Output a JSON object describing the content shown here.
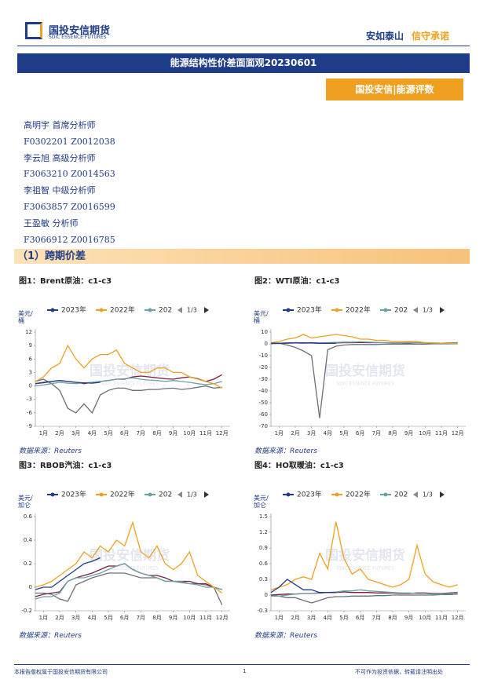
{
  "header": {
    "logo_cn": "国投安信期货",
    "logo_en": "SDIC ESSENCE FUTURES",
    "slogan_a": "安如泰山",
    "slogan_b": "信守承诺"
  },
  "title": "能源结构性价差面面观20230601",
  "badge": "国投安信|能源评数",
  "analysts": [
    "高明宇 首席分析师",
    "F0302201 Z0012038",
    "李云旭 高级分析师",
    "F3063210 Z0014563",
    "李祖智 中级分析师",
    "F3063857 Z0016599",
    "王盈敏 分析师",
    "F3066912 Z0016785"
  ],
  "section": "（1）跨期价差",
  "footer": {
    "left": "本报告版权属于国投安信期货有限公司",
    "page": "1",
    "right": "不可作为投资依据，转载请注明出处"
  },
  "chart_data": [
    {
      "type": "line",
      "title": "图1：Brent原油：c1-c3",
      "unit": "美元/桶",
      "source": "数据来源：Reuters",
      "pager": "1/3",
      "x": [
        1,
        1.5,
        2,
        2.5,
        3,
        3.5,
        4,
        4.5,
        5,
        5.5,
        6,
        6.5,
        7,
        7.5,
        8,
        8.5,
        9,
        9.5,
        10,
        10.5,
        11,
        11.5,
        12,
        12.5
      ],
      "xlim": [
        1,
        13
      ],
      "xticks": [
        {
          "value": 1.5,
          "label": "1月"
        },
        {
          "value": 2.5,
          "label": "2月"
        },
        {
          "value": 3.5,
          "label": "3月"
        },
        {
          "value": 4.5,
          "label": "4月"
        },
        {
          "value": 5.5,
          "label": "5月"
        },
        {
          "value": 6.5,
          "label": "6月"
        },
        {
          "value": 7.5,
          "label": "7月"
        },
        {
          "value": 8.5,
          "label": "8月"
        },
        {
          "value": 9.5,
          "label": "9月"
        },
        {
          "value": 10.5,
          "label": "10月"
        },
        {
          "value": 11.5,
          "label": "11月"
        },
        {
          "value": 12.5,
          "label": "12月"
        }
      ],
      "ylim": [
        -9,
        12
      ],
      "yticks": [
        -9,
        -6,
        -3,
        0,
        3,
        6,
        9,
        12
      ],
      "series": [
        {
          "name": "2023年",
          "color": "#1f3c88",
          "values": [
            0.5,
            0.8,
            1.0,
            1.2,
            1.0,
            0.8,
            0.7,
            0.6,
            0.8,
            null,
            null,
            null,
            null,
            null,
            null,
            null,
            null,
            null,
            null,
            null,
            null,
            null,
            null,
            null
          ]
        },
        {
          "name": "2022年",
          "color": "#f0a020",
          "values": [
            1,
            2,
            4,
            5,
            9,
            6,
            4,
            6,
            7,
            7,
            8,
            5,
            4,
            3,
            3,
            4,
            4,
            3,
            3,
            2,
            1.5,
            1,
            0.5,
            -0.5
          ]
        },
        {
          "name": "202",
          "color": "#6aa0a8",
          "values": [
            0,
            0.2,
            0.5,
            0.8,
            0.6,
            0.5,
            0.7,
            0.8,
            1.0,
            1.2,
            1.5,
            1.6,
            1.8,
            1.5,
            1.3,
            1.2,
            1.0,
            1.2,
            1.0,
            0.8,
            0.5,
            0.3,
            0.5,
            1.0
          ]
        },
        {
          "name": null,
          "color": "#7a1f3d",
          "values": [
            0.5,
            0.7,
            1.0,
            1.2,
            1.0,
            0.8,
            0.5,
            0.8,
            1.0,
            1.2,
            1.5,
            1.5,
            2.0,
            2.2,
            2.0,
            1.8,
            1.6,
            1.5,
            1.8,
            2.0,
            1.6,
            1.0,
            1.5,
            2.5
          ]
        },
        {
          "name": null,
          "color": "#6b6f78",
          "values": [
            1,
            1.5,
            0.5,
            -1,
            -5,
            -6,
            -4,
            -6,
            -2,
            -1,
            -0.5,
            -0.5,
            -1,
            -1,
            -0.8,
            -0.8,
            -0.6,
            -0.5,
            -0.8,
            -0.6,
            -0.3,
            0,
            -0.5,
            -0.3
          ]
        }
      ]
    },
    {
      "type": "line",
      "title": "图2：WTI原油：c1-c3",
      "unit": "美元/桶",
      "source": "数据来源：Reuters",
      "pager": "1/3",
      "x": [
        1,
        1.5,
        2,
        2.5,
        3,
        3.5,
        4,
        4.5,
        5,
        5.5,
        6,
        6.5,
        7,
        7.5,
        8,
        8.5,
        9,
        9.5,
        10,
        10.5,
        11,
        11.5,
        12,
        12.5
      ],
      "xlim": [
        1,
        13
      ],
      "xticks": [
        {
          "value": 1.5,
          "label": "1月"
        },
        {
          "value": 2.5,
          "label": "2月"
        },
        {
          "value": 3.5,
          "label": "3月"
        },
        {
          "value": 4.5,
          "label": "4月"
        },
        {
          "value": 5.5,
          "label": "5月"
        },
        {
          "value": 6.5,
          "label": "6月"
        },
        {
          "value": 7.5,
          "label": "7月"
        },
        {
          "value": 8.5,
          "label": "8月"
        },
        {
          "value": 9.5,
          "label": "9月"
        },
        {
          "value": 10.5,
          "label": "10月"
        },
        {
          "value": 11.5,
          "label": "11月"
        },
        {
          "value": 12.5,
          "label": "12月"
        }
      ],
      "ylim": [
        -70,
        10
      ],
      "yticks": [
        -70,
        -60,
        -50,
        -40,
        -30,
        -20,
        -10,
        0,
        10
      ],
      "series": [
        {
          "name": "2023年",
          "color": "#1f3c88",
          "values": [
            0.5,
            0.5,
            0.6,
            0.8,
            0.8,
            1,
            0.5,
            0.5,
            0.5,
            null,
            null,
            null,
            null,
            null,
            null,
            null,
            null,
            null,
            null,
            null,
            null,
            null,
            null,
            null
          ]
        },
        {
          "name": "2022年",
          "color": "#f0a020",
          "values": [
            1,
            2,
            4,
            5,
            8,
            5,
            6,
            7,
            8,
            7,
            6,
            4,
            4,
            3,
            3,
            2,
            2,
            2,
            2,
            1,
            1,
            0.5,
            0.5,
            0
          ]
        },
        {
          "name": "202",
          "color": "#6aa0a8",
          "values": [
            0,
            0.3,
            0.6,
            0.8,
            0.5,
            0.8,
            0.8,
            1,
            1.2,
            1.5,
            1.5,
            1.8,
            1.5,
            1.2,
            1,
            1,
            1,
            1.2,
            1,
            0.8,
            0.5,
            0.5,
            0.8,
            0.8
          ]
        },
        {
          "name": null,
          "color": "#7a1f3d",
          "values": [
            0.5,
            0.5,
            0.8,
            1,
            0.8,
            0.6,
            0.5,
            0.6,
            0.8,
            1,
            1,
            1.2,
            1,
            1,
            1,
            0.8,
            0.8,
            0.8,
            1,
            1,
            0.8,
            0.6,
            0.8,
            1
          ]
        },
        {
          "name": null,
          "color": "#6b6f78",
          "values": [
            0.5,
            0.5,
            -1,
            -3,
            -6,
            -10,
            -63,
            -5,
            -2,
            -1,
            -0.5,
            -0.5,
            -0.5,
            -0.5,
            -0.3,
            -0.3,
            -0.3,
            -0.2,
            -0.2,
            -0.2,
            0,
            0,
            0,
            0
          ]
        }
      ]
    },
    {
      "type": "line",
      "title": "图3：RBOB汽油：c1-c3",
      "unit": "美元/加仑",
      "source": "数据来源：Reuters",
      "pager": "1/3",
      "x": [
        1,
        1.5,
        2,
        2.5,
        3,
        3.5,
        4,
        4.5,
        5,
        5.5,
        6,
        6.5,
        7,
        7.5,
        8,
        8.5,
        9,
        9.5,
        10,
        10.5,
        11,
        11.5,
        12,
        12.5
      ],
      "xlim": [
        1,
        13
      ],
      "xticks": [
        {
          "value": 1.5,
          "label": "1月"
        },
        {
          "value": 2.5,
          "label": "2月"
        },
        {
          "value": 3.5,
          "label": "3月"
        },
        {
          "value": 4.5,
          "label": "4月"
        },
        {
          "value": 5.5,
          "label": "5月"
        },
        {
          "value": 6.5,
          "label": "6月"
        },
        {
          "value": 7.5,
          "label": "7月"
        },
        {
          "value": 8.5,
          "label": "8月"
        },
        {
          "value": 9.5,
          "label": "9月"
        },
        {
          "value": 10.5,
          "label": "10月"
        },
        {
          "value": 11.5,
          "label": "11月"
        },
        {
          "value": 12.5,
          "label": "12月"
        }
      ],
      "ylim": [
        -0.2,
        0.6
      ],
      "yticks": [
        -0.2,
        0,
        0.2,
        0.4,
        0.6
      ],
      "series": [
        {
          "name": "2023年",
          "color": "#1f3c88",
          "values": [
            -0.02,
            0,
            0,
            0.05,
            0.1,
            0.15,
            0.2,
            0.22,
            0.25,
            null,
            null,
            null,
            null,
            null,
            null,
            null,
            null,
            null,
            null,
            null,
            null,
            null,
            null,
            null
          ]
        },
        {
          "name": "2022年",
          "color": "#f0a020",
          "values": [
            0,
            0.02,
            0.05,
            0.1,
            0.15,
            0.2,
            0.3,
            0.25,
            0.35,
            0.3,
            0.4,
            0.35,
            0.55,
            0.3,
            0.25,
            0.35,
            0.2,
            0.15,
            0.2,
            0.3,
            0.1,
            0.05,
            0,
            -0.05
          ]
        },
        {
          "name": "202",
          "color": "#6aa0a8",
          "values": [
            -0.1,
            -0.08,
            -0.08,
            -0.05,
            0.05,
            0.08,
            0.08,
            0.1,
            0.12,
            0.15,
            0.18,
            0.2,
            0.15,
            0.12,
            0.1,
            0.08,
            0.05,
            0.05,
            0.05,
            0.03,
            0.02,
            0,
            0,
            -0.02
          ]
        },
        {
          "name": null,
          "color": "#7a1f3d",
          "values": [
            -0.08,
            -0.06,
            -0.05,
            -0.04,
            0.05,
            0.08,
            0.1,
            0.12,
            0.15,
            0.18,
            0.18,
            0.2,
            0.15,
            0.12,
            0.1,
            0.1,
            0.08,
            0.05,
            0.05,
            0.05,
            0.03,
            0.03,
            0,
            -0.02
          ]
        },
        {
          "name": null,
          "color": "#6b6f78",
          "values": [
            -0.05,
            -0.05,
            -0.06,
            -0.1,
            -0.12,
            0.02,
            0.05,
            0.08,
            0.1,
            0.12,
            0.12,
            0.12,
            0.1,
            0.08,
            0.08,
            0.08,
            0.05,
            0.05,
            0.04,
            0.03,
            0.03,
            0.02,
            0,
            -0.15
          ]
        }
      ]
    },
    {
      "type": "line",
      "title": "图4：HO取暖油：c1-c3",
      "unit": "美元/加仑",
      "source": "数据来源：Reuters",
      "pager": "1/3",
      "x": [
        1,
        1.5,
        2,
        2.5,
        3,
        3.5,
        4,
        4.5,
        5,
        5.5,
        6,
        6.5,
        7,
        7.5,
        8,
        8.5,
        9,
        9.5,
        10,
        10.5,
        11,
        11.5,
        12,
        12.5
      ],
      "xlim": [
        1,
        13
      ],
      "xticks": [
        {
          "value": 1.5,
          "label": "1月"
        },
        {
          "value": 2.5,
          "label": "2月"
        },
        {
          "value": 3.5,
          "label": "3月"
        },
        {
          "value": 4.5,
          "label": "4月"
        },
        {
          "value": 5.5,
          "label": "5月"
        },
        {
          "value": 6.5,
          "label": "6月"
        },
        {
          "value": 7.5,
          "label": "7月"
        },
        {
          "value": 8.5,
          "label": "8月"
        },
        {
          "value": 9.5,
          "label": "9月"
        },
        {
          "value": 10.5,
          "label": "10月"
        },
        {
          "value": 11.5,
          "label": "11月"
        },
        {
          "value": 12.5,
          "label": "12月"
        }
      ],
      "ylim": [
        -0.3,
        1.5
      ],
      "yticks": [
        -0.3,
        0,
        0.3,
        0.6,
        0.9,
        1.2,
        1.5
      ],
      "series": [
        {
          "name": "2023年",
          "color": "#1f3c88",
          "values": [
            0.05,
            0.15,
            0.3,
            0.2,
            0.1,
            0.1,
            0.05,
            0.05,
            0.05,
            null,
            null,
            null,
            null,
            null,
            null,
            null,
            null,
            null,
            null,
            null,
            null,
            null,
            null,
            null
          ]
        },
        {
          "name": "2022年",
          "color": "#f0a020",
          "values": [
            0.1,
            0.15,
            0.2,
            0.3,
            0.35,
            0.3,
            0.8,
            0.5,
            1.4,
            0.7,
            0.4,
            0.5,
            0.3,
            0.25,
            0.2,
            0.15,
            0.2,
            0.3,
            0.95,
            0.4,
            0.25,
            0.2,
            0.15,
            0.2
          ]
        },
        {
          "name": "202",
          "color": "#6aa0a8",
          "values": [
            -0.02,
            -0.02,
            0,
            0.02,
            0.03,
            0.03,
            0.05,
            0.05,
            0.06,
            0.08,
            0.08,
            0.1,
            0.08,
            0.07,
            0.06,
            0.05,
            0.04,
            0.04,
            0.03,
            0.03,
            0.02,
            0.02,
            0.03,
            0.04
          ]
        },
        {
          "name": null,
          "color": "#7a1f3d",
          "values": [
            0,
            0.01,
            0.02,
            0.02,
            0.03,
            0.03,
            0.04,
            0.05,
            0.05,
            0.06,
            0.05,
            0.05,
            0.05,
            0.04,
            0.04,
            0.04,
            0.03,
            0.03,
            0.04,
            0.04,
            0.03,
            0.03,
            0.04,
            0.05
          ]
        },
        {
          "name": null,
          "color": "#6b6f78",
          "values": [
            0,
            -0.02,
            -0.05,
            -0.05,
            -0.1,
            -0.15,
            -0.1,
            -0.05,
            -0.03,
            -0.03,
            -0.02,
            -0.02,
            -0.02,
            -0.01,
            -0.01,
            0,
            0,
            0,
            0,
            0,
            0,
            0.01,
            0.01,
            0.02
          ]
        }
      ]
    }
  ]
}
